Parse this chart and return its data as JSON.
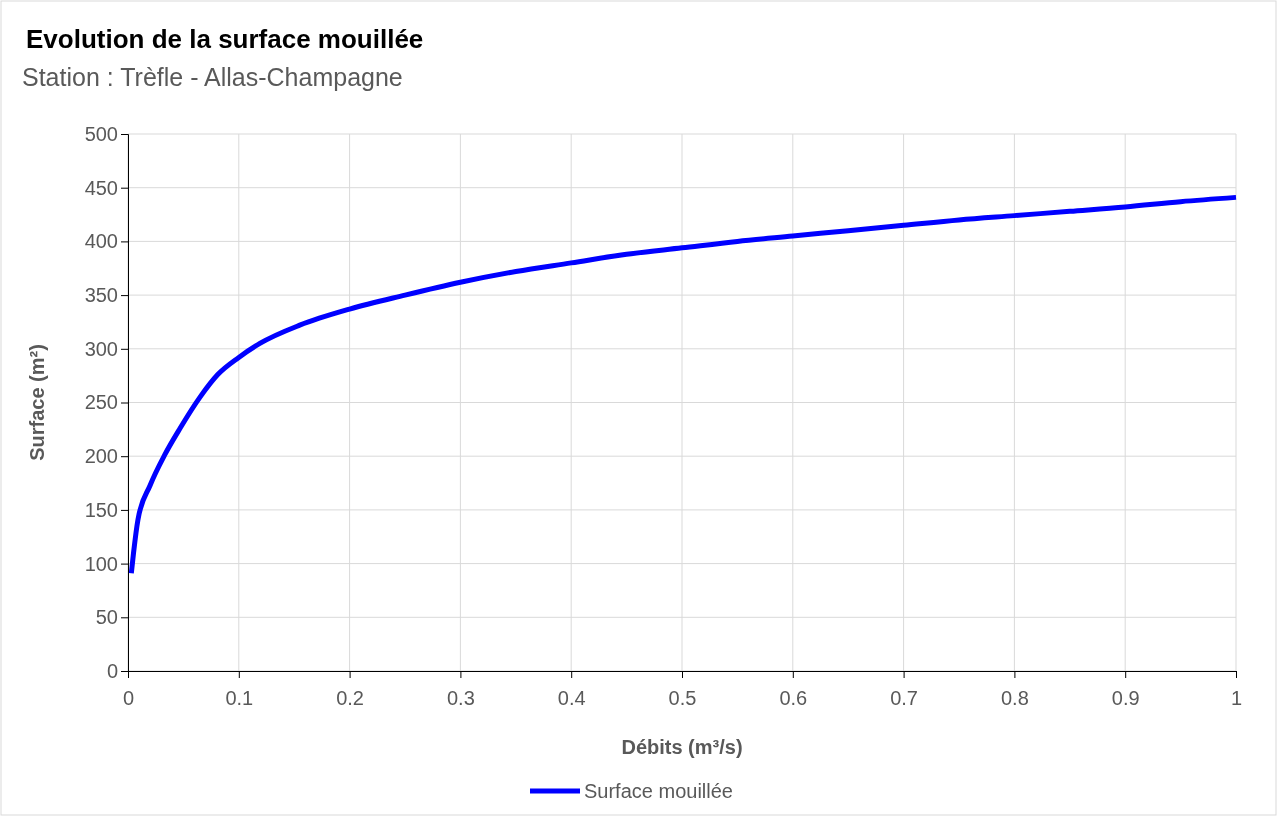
{
  "chart_data": {
    "type": "line",
    "title": "Evolution de la surface mouillée",
    "subtitle": "Station : Trèfle - Allas-Champagne",
    "xlabel": "Débits (m³/s)",
    "ylabel": "Surface (m²)",
    "xlim": [
      0,
      1
    ],
    "xticks": [
      0,
      0.1,
      0.2,
      0.3,
      0.4,
      0.5,
      0.6,
      0.7,
      0.8,
      0.9,
      1
    ],
    "ylim": [
      0,
      500
    ],
    "yticks": [
      0,
      50,
      100,
      150,
      200,
      250,
      300,
      350,
      400,
      450,
      500
    ],
    "grid": true,
    "legend": "bottom",
    "marker": "none",
    "line_style": "solid",
    "series": [
      {
        "name": "Surface mouillée",
        "color": "#0000ff",
        "x": [
          0.003,
          0.005,
          0.009,
          0.02,
          0.033,
          0.047,
          0.065,
          0.081,
          0.1,
          0.119,
          0.155,
          0.2,
          0.25,
          0.3,
          0.35,
          0.4,
          0.45,
          0.5,
          0.55,
          0.6,
          0.65,
          0.7,
          0.75,
          0.8,
          0.85,
          0.9,
          0.95,
          1
        ],
        "values": [
          91,
          110,
          141,
          173,
          201,
          226,
          255,
          276,
          292,
          305,
          322,
          337,
          350,
          362,
          372,
          380,
          388,
          394,
          400,
          405,
          410,
          415,
          420,
          424,
          428,
          432,
          437,
          441
        ]
      }
    ]
  }
}
